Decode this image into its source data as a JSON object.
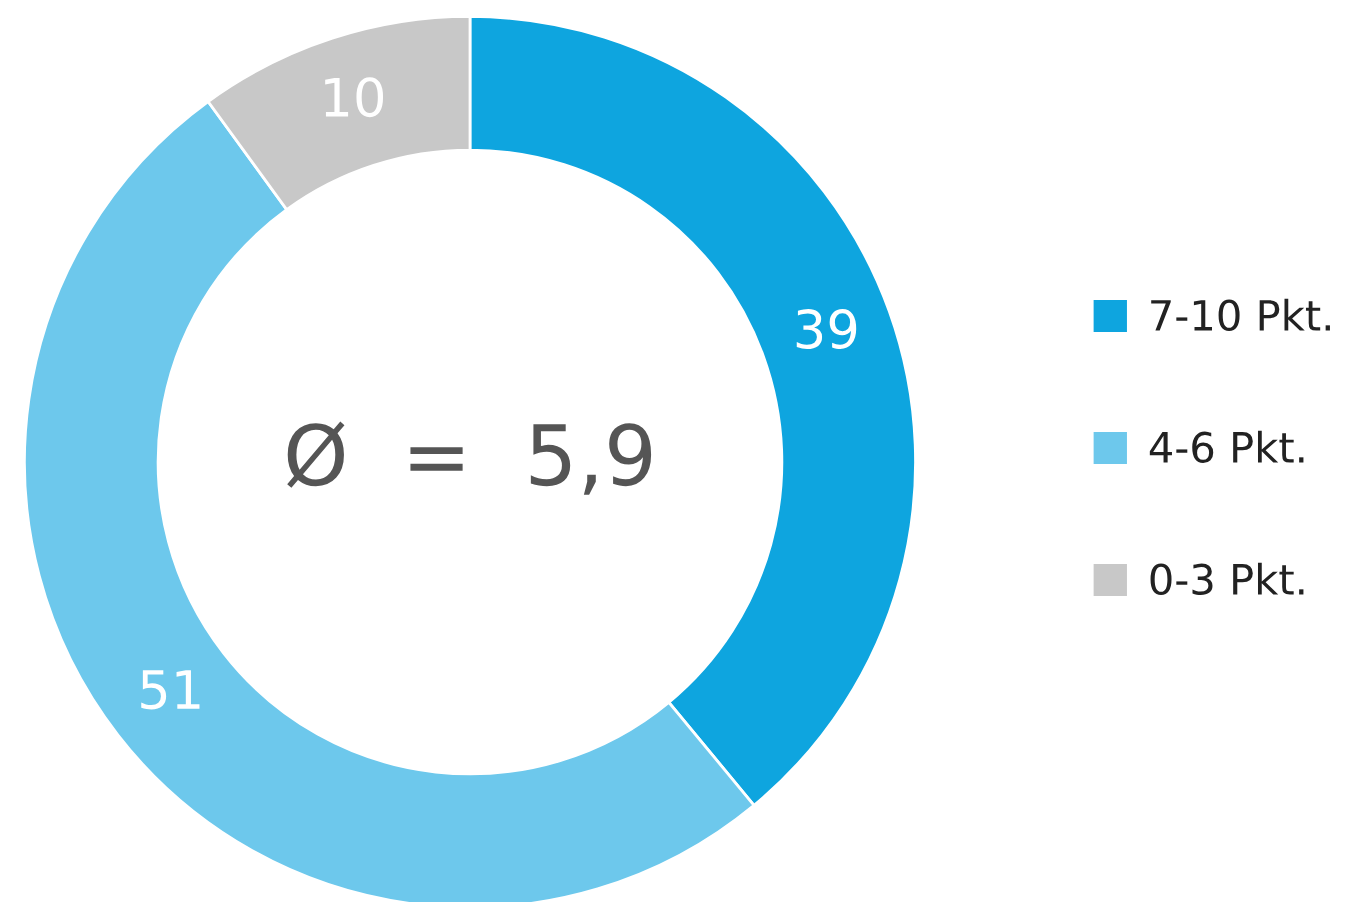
{
  "chart_data": {
    "type": "donut",
    "categories": [
      "7-10 Pkt.",
      "4-6 Pkt.",
      "0-3 Pkt."
    ],
    "values": [
      39,
      51,
      10
    ],
    "colors": [
      "#0ea5df",
      "#6dc8ec",
      "#c8c8c8"
    ],
    "data_labels": true,
    "legend": "right",
    "annotations": [
      "Ø  =  5,9"
    ]
  }
}
